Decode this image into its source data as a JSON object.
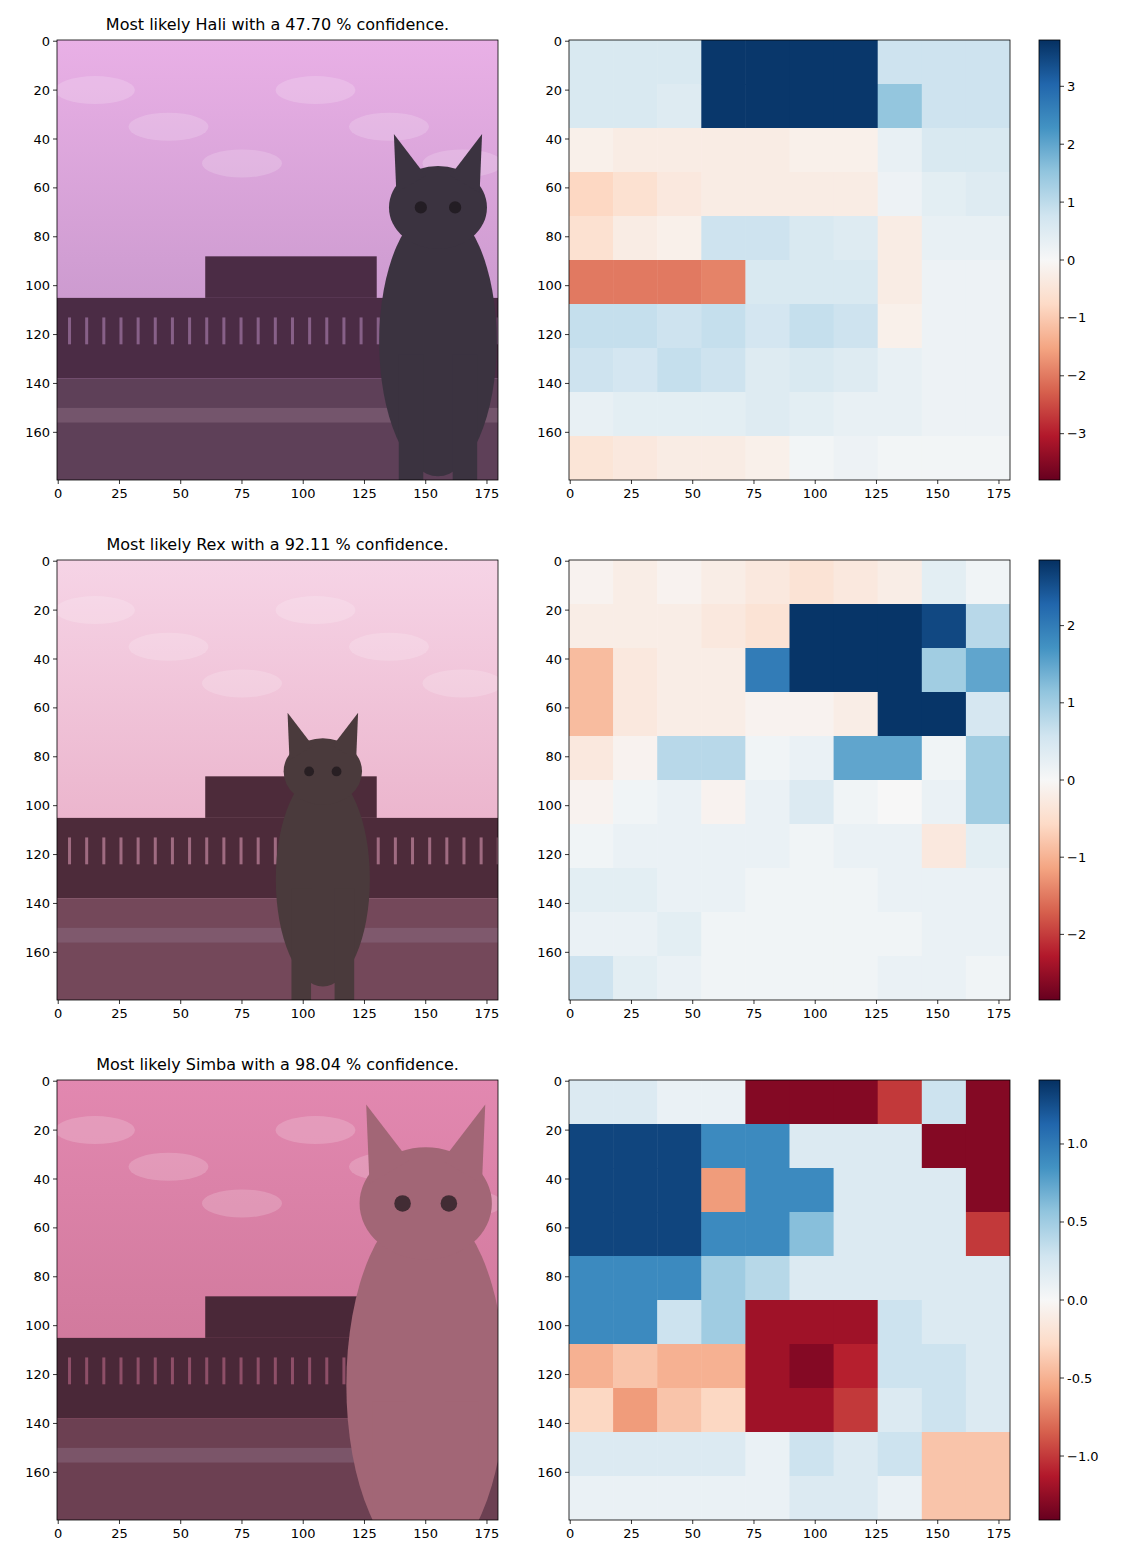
{
  "chart_data": [
    {
      "type": "image",
      "title": "Most likely Hali with a 47.70 % confidence.",
      "xlim": [
        -0.5,
        179.5
      ],
      "ylim": [
        179.5,
        -0.5
      ],
      "xticks": [
        0,
        25,
        50,
        75,
        100,
        125,
        150,
        175
      ],
      "yticks": [
        0,
        20,
        40,
        60,
        80,
        100,
        120,
        140,
        160
      ]
    },
    {
      "type": "heatmap",
      "xlim": [
        -0.5,
        179.5
      ],
      "ylim": [
        179.5,
        -0.5
      ],
      "xticks": [
        0,
        25,
        50,
        75,
        100,
        125,
        150,
        175
      ],
      "yticks": [
        0,
        20,
        40,
        60,
        80,
        100,
        120,
        140,
        160
      ],
      "cells": [
        [
          0.6,
          0.6,
          0.6,
          3.7,
          3.7,
          3.7,
          3.7,
          0.8,
          0.8,
          0.8
        ],
        [
          0.6,
          0.6,
          0.5,
          3.7,
          3.7,
          3.7,
          3.7,
          1.5,
          0.8,
          0.8
        ],
        [
          -0.2,
          -0.3,
          -0.3,
          -0.3,
          -0.3,
          -0.2,
          -0.2,
          0.3,
          0.6,
          0.6
        ],
        [
          -0.8,
          -0.6,
          -0.4,
          -0.3,
          -0.3,
          -0.3,
          -0.3,
          0.2,
          0.4,
          0.5
        ],
        [
          -0.6,
          -0.3,
          -0.2,
          0.8,
          0.8,
          0.6,
          0.5,
          -0.3,
          0.3,
          0.3
        ],
        [
          -2.0,
          -2.0,
          -2.0,
          -1.9,
          0.6,
          0.6,
          0.6,
          -0.3,
          0.2,
          0.2
        ],
        [
          0.9,
          0.9,
          0.8,
          0.9,
          0.7,
          0.9,
          0.8,
          -0.2,
          0.2,
          0.2
        ],
        [
          0.8,
          0.7,
          0.9,
          0.8,
          0.5,
          0.6,
          0.5,
          0.3,
          0.2,
          0.2
        ],
        [
          0.3,
          0.4,
          0.4,
          0.4,
          0.5,
          0.4,
          0.3,
          0.3,
          0.2,
          0.2
        ],
        [
          -0.5,
          -0.4,
          -0.3,
          -0.3,
          -0.2,
          0.1,
          0.2,
          0.1,
          0.1,
          0.1
        ]
      ],
      "colorbar_lim": [
        -3.8,
        3.8
      ],
      "colorbar_ticks": [
        {
          "value": -3,
          "label": "−3"
        },
        {
          "value": -2,
          "label": "−2"
        },
        {
          "value": -1,
          "label": "−1"
        },
        0,
        1,
        2,
        3
      ]
    },
    {
      "type": "image",
      "title": "Most likely Rex with a 92.11 % confidence.",
      "xlim": [
        -0.5,
        179.5
      ],
      "ylim": [
        179.5,
        -0.5
      ],
      "xticks": [
        0,
        25,
        50,
        75,
        100,
        125,
        150,
        175
      ],
      "yticks": [
        0,
        20,
        40,
        60,
        80,
        100,
        120,
        140,
        160
      ]
    },
    {
      "type": "heatmap",
      "xlim": [
        -0.5,
        179.5
      ],
      "ylim": [
        179.5,
        -0.5
      ],
      "xticks": [
        0,
        25,
        50,
        75,
        100,
        125,
        150,
        175
      ],
      "yticks": [
        0,
        20,
        40,
        60,
        80,
        100,
        120,
        140,
        160
      ],
      "cells": [
        [
          -0.1,
          -0.2,
          -0.1,
          -0.2,
          -0.3,
          -0.4,
          -0.3,
          -0.2,
          0.3,
          0.1
        ],
        [
          -0.2,
          -0.2,
          -0.2,
          -0.3,
          -0.4,
          2.8,
          2.8,
          2.8,
          2.6,
          0.8
        ],
        [
          -0.9,
          -0.3,
          -0.2,
          -0.2,
          2.0,
          2.8,
          2.8,
          2.8,
          1.0,
          1.5
        ],
        [
          -0.9,
          -0.3,
          -0.2,
          -0.2,
          -0.1,
          -0.1,
          -0.2,
          2.8,
          2.8,
          0.5
        ],
        [
          -0.3,
          -0.1,
          0.8,
          0.8,
          0.1,
          0.2,
          1.5,
          1.5,
          0.1,
          1.0
        ],
        [
          -0.1,
          0.1,
          0.2,
          -0.1,
          0.2,
          0.4,
          0.1,
          0.0,
          0.2,
          1.0
        ],
        [
          0.1,
          0.2,
          0.2,
          0.2,
          0.2,
          0.1,
          0.2,
          0.2,
          -0.3,
          0.3
        ],
        [
          0.3,
          0.3,
          0.2,
          0.2,
          0.1,
          0.1,
          0.1,
          0.2,
          0.2,
          0.2
        ],
        [
          0.2,
          0.2,
          0.3,
          0.1,
          0.1,
          0.1,
          0.1,
          0.1,
          0.2,
          0.2
        ],
        [
          0.6,
          0.3,
          0.2,
          0.1,
          0.1,
          0.1,
          0.1,
          0.2,
          0.2,
          0.1
        ]
      ],
      "colorbar_lim": [
        -2.85,
        2.85
      ],
      "colorbar_ticks": [
        {
          "value": -2,
          "label": "−2"
        },
        {
          "value": -1,
          "label": "−1"
        },
        0,
        1,
        2
      ]
    },
    {
      "type": "image",
      "title": "Most likely Simba with a 98.04 % confidence.",
      "xlim": [
        -0.5,
        179.5
      ],
      "ylim": [
        179.5,
        -0.5
      ],
      "xticks": [
        0,
        25,
        50,
        75,
        100,
        125,
        150,
        175
      ],
      "yticks": [
        0,
        20,
        40,
        60,
        80,
        100,
        120,
        140,
        160
      ]
    },
    {
      "type": "heatmap",
      "xlim": [
        -0.5,
        179.5
      ],
      "ylim": [
        179.5,
        -0.5
      ],
      "xticks": [
        0,
        25,
        50,
        75,
        100,
        125,
        150,
        175
      ],
      "yticks": [
        0,
        20,
        40,
        60,
        80,
        100,
        120,
        140,
        160
      ],
      "cells": [
        [
          0.2,
          0.2,
          0.1,
          0.1,
          -1.3,
          -1.3,
          -1.3,
          -1.0,
          0.3,
          -1.3
        ],
        [
          1.3,
          1.3,
          1.3,
          0.9,
          0.9,
          0.2,
          0.2,
          0.2,
          -1.3,
          -1.3
        ],
        [
          1.3,
          1.3,
          1.3,
          -0.6,
          0.9,
          0.9,
          0.2,
          0.2,
          0.2,
          -1.3
        ],
        [
          1.3,
          1.3,
          1.3,
          0.9,
          0.9,
          0.6,
          0.2,
          0.2,
          0.2,
          -1.0
        ],
        [
          0.9,
          0.9,
          0.9,
          0.5,
          0.4,
          0.2,
          0.2,
          0.2,
          0.2,
          0.2
        ],
        [
          0.9,
          0.9,
          0.3,
          0.5,
          -1.2,
          -1.2,
          -1.2,
          0.3,
          0.2,
          0.2
        ],
        [
          -0.5,
          -0.4,
          -0.5,
          -0.5,
          -1.2,
          -1.3,
          -1.1,
          0.3,
          0.3,
          0.2
        ],
        [
          -0.3,
          -0.6,
          -0.4,
          -0.3,
          -1.2,
          -1.2,
          -1.0,
          0.2,
          0.3,
          0.2
        ],
        [
          0.2,
          0.2,
          0.2,
          0.2,
          0.1,
          0.3,
          0.2,
          0.3,
          -0.4,
          -0.4
        ],
        [
          0.1,
          0.1,
          0.1,
          0.1,
          0.1,
          0.2,
          0.2,
          0.1,
          -0.4,
          -0.4
        ]
      ],
      "colorbar_lim": [
        -1.41,
        1.41
      ],
      "colorbar_ticks": [
        {
          "value": -1.0,
          "label": "−1.0"
        },
        -0.5,
        {
          "value": 0.0,
          "label": "0.0"
        },
        0.5,
        {
          "value": 1.0,
          "label": "1.0"
        }
      ]
    }
  ]
}
